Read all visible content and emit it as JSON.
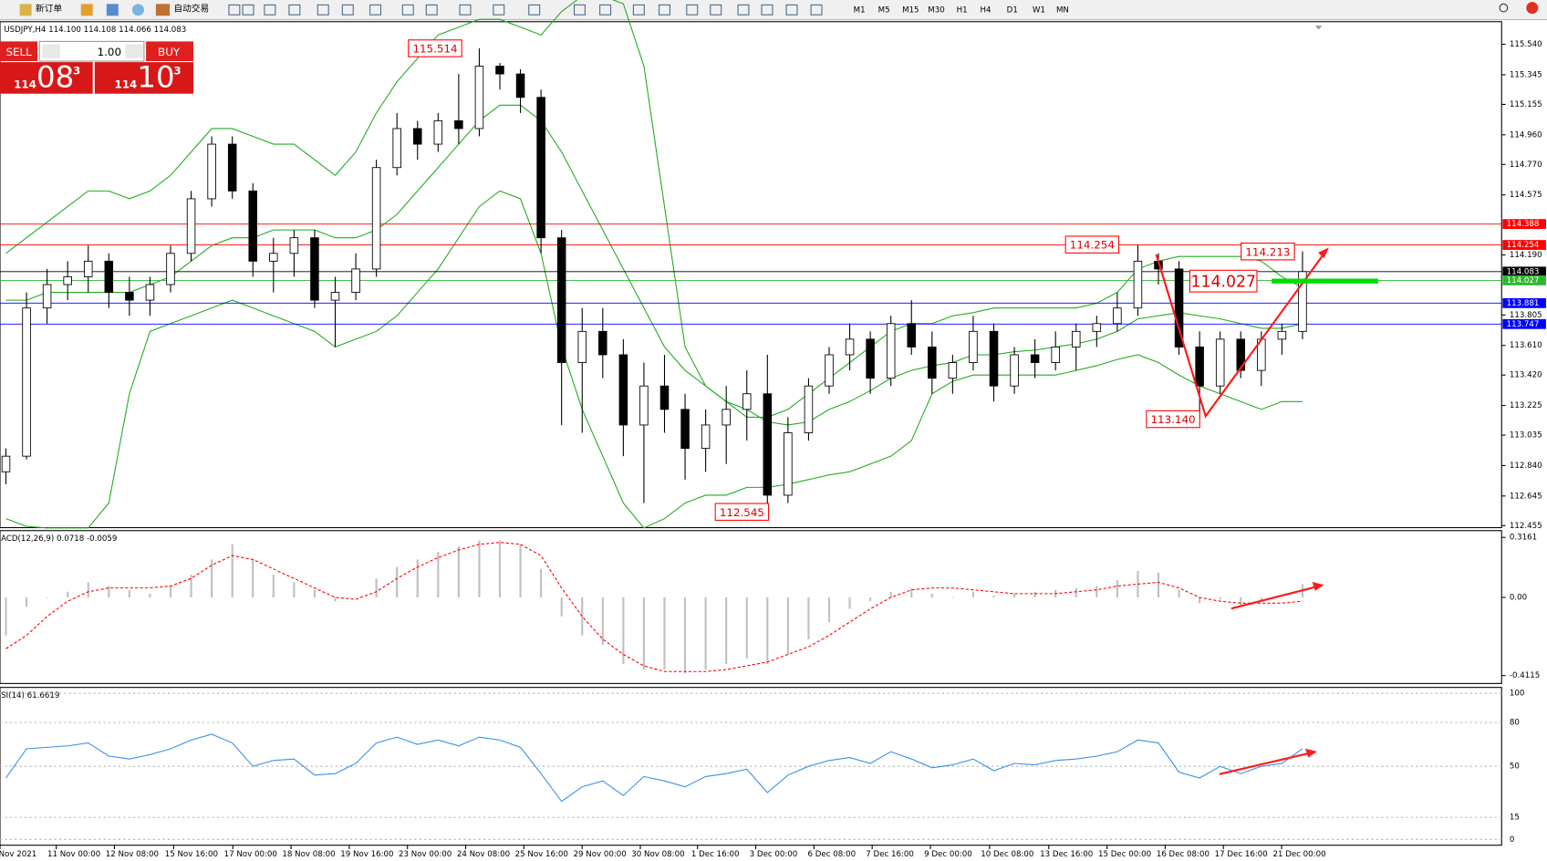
{
  "toolbar": {
    "new_order": "新订单",
    "auto_trading": "自动交易",
    "timeframes": [
      "M1",
      "M5",
      "M15",
      "M30",
      "H1",
      "H4",
      "D1",
      "W1",
      "MN"
    ]
  },
  "trade_panel": {
    "sell": "SELL",
    "buy": "BUY",
    "lot": "1.00",
    "bid": {
      "big": "114",
      "pips": "08",
      "point": "3"
    },
    "ask": {
      "big": "114",
      "pips": "10",
      "point": "3"
    }
  },
  "chart_data": {
    "type": "candlestick",
    "info": "USDJPY,H4  114.100 114.108 114.066 114.083",
    "ylim": [
      112.442,
      115.685
    ],
    "yticks": [
      {
        "value": 115.54,
        "label": "115.540"
      },
      115.345,
      115.155,
      {
        "value": 114.96,
        "label": "114.960"
      },
      {
        "value": 114.77,
        "label": "114.770"
      },
      114.575,
      {
        "value": 114.19,
        "label": "114.190"
      },
      113.805,
      {
        "value": 113.61,
        "label": "113.610"
      },
      {
        "value": 113.42,
        "label": "113.420"
      },
      113.225,
      113.035,
      {
        "value": 112.84,
        "label": "112.840"
      },
      112.645,
      112.455
    ],
    "levels": [
      {
        "value": 114.388,
        "color": "#ff0000"
      },
      {
        "value": 114.254,
        "color": "#ff0000"
      },
      {
        "value": 114.083,
        "color": "#000000"
      },
      {
        "value": 114.027,
        "color": "#2eb82e"
      },
      {
        "value": 113.881,
        "color": "#0000ff"
      },
      {
        "value": 113.747,
        "color": "#0000ff"
      }
    ],
    "annotations": [
      115.514,
      114.254,
      114.213,
      114.027,
      {
        "value": 113.14,
        "label": "113.140"
      },
      112.545
    ],
    "candles": [
      [
        112.8,
        112.95,
        112.72,
        112.9
      ],
      [
        112.9,
        113.95,
        112.88,
        113.85
      ],
      [
        113.85,
        114.1,
        113.75,
        114.0
      ],
      [
        114.0,
        114.15,
        113.9,
        114.05
      ],
      [
        114.05,
        114.25,
        113.95,
        114.15
      ],
      [
        114.15,
        114.2,
        113.85,
        113.95
      ],
      [
        113.95,
        114.05,
        113.8,
        113.9
      ],
      [
        113.9,
        114.05,
        113.8,
        114.0
      ],
      [
        114.0,
        114.25,
        113.95,
        114.2
      ],
      [
        114.2,
        114.6,
        114.15,
        114.55
      ],
      [
        114.55,
        114.95,
        114.5,
        114.9
      ],
      [
        114.9,
        114.95,
        114.55,
        114.6
      ],
      [
        114.6,
        114.65,
        114.05,
        114.15
      ],
      [
        114.15,
        114.3,
        113.95,
        114.2
      ],
      [
        114.2,
        114.35,
        114.05,
        114.3
      ],
      [
        114.3,
        114.35,
        113.85,
        113.9
      ],
      [
        113.9,
        114.05,
        113.6,
        113.95
      ],
      [
        113.95,
        114.2,
        113.9,
        114.1
      ],
      [
        114.1,
        114.8,
        114.05,
        114.75
      ],
      [
        114.75,
        115.1,
        114.7,
        115.0
      ],
      [
        115.0,
        115.05,
        114.8,
        114.9
      ],
      [
        114.9,
        115.1,
        114.85,
        115.05
      ],
      [
        115.05,
        115.35,
        114.9,
        115.0
      ],
      [
        115.0,
        115.514,
        114.95,
        115.4
      ],
      [
        115.4,
        115.42,
        115.25,
        115.35
      ],
      [
        115.35,
        115.38,
        115.1,
        115.2
      ],
      [
        115.2,
        115.25,
        114.2,
        114.3
      ],
      [
        114.3,
        114.35,
        113.1,
        113.5
      ],
      [
        113.5,
        113.85,
        113.05,
        113.7
      ],
      [
        113.7,
        113.85,
        113.4,
        113.55
      ],
      [
        113.55,
        113.65,
        112.9,
        113.1
      ],
      [
        113.1,
        113.5,
        112.6,
        113.35
      ],
      [
        113.35,
        113.55,
        113.05,
        113.2
      ],
      [
        113.2,
        113.3,
        112.75,
        112.95
      ],
      [
        112.95,
        113.2,
        112.8,
        113.1
      ],
      [
        113.1,
        113.35,
        112.85,
        113.2
      ],
      [
        113.2,
        113.45,
        113.0,
        113.3
      ],
      [
        113.3,
        113.55,
        112.545,
        112.65
      ],
      [
        112.65,
        113.15,
        112.6,
        113.05
      ],
      [
        113.05,
        113.4,
        113.0,
        113.35
      ],
      [
        113.35,
        113.6,
        113.3,
        113.55
      ],
      [
        113.55,
        113.75,
        113.45,
        113.65
      ],
      [
        113.65,
        113.7,
        113.3,
        113.4
      ],
      [
        113.4,
        113.8,
        113.35,
        113.75
      ],
      [
        113.75,
        113.9,
        113.55,
        113.6
      ],
      [
        113.6,
        113.7,
        113.3,
        113.4
      ],
      [
        113.4,
        113.55,
        113.3,
        113.5
      ],
      [
        113.5,
        113.8,
        113.45,
        113.7
      ],
      [
        113.7,
        113.75,
        113.25,
        113.35
      ],
      [
        113.35,
        113.6,
        113.3,
        113.55
      ],
      [
        113.55,
        113.65,
        113.4,
        113.5
      ],
      [
        113.5,
        113.7,
        113.45,
        113.6
      ],
      [
        113.6,
        113.75,
        113.45,
        113.7
      ],
      [
        113.7,
        113.8,
        113.6,
        113.75
      ],
      [
        113.75,
        113.95,
        113.7,
        113.85
      ],
      [
        113.85,
        114.254,
        113.8,
        114.15
      ],
      [
        114.15,
        114.2,
        114.0,
        114.1
      ],
      [
        114.1,
        114.15,
        113.55,
        113.6
      ],
      [
        113.6,
        113.7,
        113.14,
        113.35
      ],
      [
        113.35,
        113.7,
        113.3,
        113.65
      ],
      [
        113.65,
        113.7,
        113.4,
        113.45
      ],
      [
        113.45,
        113.7,
        113.35,
        113.65
      ],
      [
        113.65,
        113.75,
        113.55,
        113.7
      ],
      [
        113.7,
        114.213,
        113.65,
        114.083
      ]
    ],
    "bands": {
      "color": "#22aa22",
      "upper": [
        114.2,
        114.3,
        114.4,
        114.5,
        114.6,
        114.6,
        114.55,
        114.6,
        114.7,
        114.85,
        115.0,
        115.0,
        114.95,
        114.9,
        114.9,
        114.8,
        114.7,
        114.85,
        115.1,
        115.3,
        115.45,
        115.6,
        115.65,
        115.7,
        115.7,
        115.65,
        115.6,
        115.75,
        115.85,
        115.85,
        115.8,
        115.4,
        114.5,
        113.6,
        113.35,
        113.25,
        113.15,
        113.15,
        113.2,
        113.3,
        113.4,
        113.5,
        113.6,
        113.7,
        113.75,
        113.75,
        113.8,
        113.82,
        113.85,
        113.85,
        113.85,
        113.85,
        113.85,
        113.88,
        113.95,
        114.1,
        114.15,
        114.18,
        114.18,
        114.18,
        114.18,
        114.15,
        114.05,
        113.98
      ],
      "middle": [
        113.9,
        113.9,
        113.95,
        113.95,
        113.95,
        113.95,
        113.95,
        114.0,
        114.05,
        114.15,
        114.25,
        114.3,
        114.3,
        114.35,
        114.35,
        114.35,
        114.3,
        114.3,
        114.35,
        114.45,
        114.6,
        114.75,
        114.9,
        115.05,
        115.15,
        115.15,
        115.05,
        114.85,
        114.6,
        114.35,
        114.1,
        113.85,
        113.6,
        113.45,
        113.35,
        113.25,
        113.2,
        113.12,
        113.1,
        113.12,
        113.2,
        113.25,
        113.32,
        113.4,
        113.45,
        113.48,
        113.5,
        113.55,
        113.55,
        113.57,
        113.58,
        113.6,
        113.62,
        113.65,
        113.7,
        113.78,
        113.8,
        113.82,
        113.8,
        113.78,
        113.75,
        113.72,
        113.72,
        113.75
      ],
      "lower": [
        112.5,
        112.45,
        112.44,
        112.44,
        112.44,
        112.6,
        113.3,
        113.7,
        113.75,
        113.8,
        113.85,
        113.9,
        113.85,
        113.8,
        113.75,
        113.7,
        113.6,
        113.65,
        113.7,
        113.8,
        113.95,
        114.1,
        114.3,
        114.5,
        114.6,
        114.55,
        114.2,
        113.6,
        113.2,
        112.9,
        112.6,
        112.44,
        112.5,
        112.6,
        112.65,
        112.65,
        112.7,
        112.7,
        112.72,
        112.75,
        112.78,
        112.8,
        112.85,
        112.9,
        113.0,
        113.3,
        113.38,
        113.42,
        113.42,
        113.42,
        113.42,
        113.42,
        113.45,
        113.48,
        113.52,
        113.55,
        113.5,
        113.42,
        113.35,
        113.3,
        113.25,
        113.2,
        113.25,
        113.25
      ]
    },
    "macd": {
      "label": "ACD(12,26,9) 0.0718 -0.0059",
      "ylim": [
        -0.453,
        0.352
      ],
      "yticks": [
        0.3161,
        {
          "value": 0,
          "label": "0.00"
        },
        -0.4115
      ],
      "histogram": [
        -0.2,
        -0.05,
        0.0,
        0.03,
        0.08,
        0.06,
        0.04,
        0.02,
        0.06,
        0.12,
        0.2,
        0.28,
        0.2,
        0.12,
        0.08,
        0.04,
        -0.02,
        0.0,
        0.1,
        0.16,
        0.2,
        0.24,
        0.27,
        0.3,
        0.3,
        0.28,
        0.15,
        -0.1,
        -0.2,
        -0.25,
        -0.35,
        -0.38,
        -0.38,
        -0.4,
        -0.38,
        -0.35,
        -0.32,
        -0.35,
        -0.3,
        -0.22,
        -0.13,
        -0.06,
        -0.02,
        0.03,
        0.05,
        0.02,
        0.0,
        0.03,
        0.01,
        0.02,
        0.03,
        0.04,
        0.05,
        0.06,
        0.09,
        0.14,
        0.13,
        0.04,
        -0.03,
        -0.01,
        -0.04,
        -0.02,
        0.0,
        0.07
      ],
      "signal": [
        -0.27,
        -0.2,
        -0.1,
        -0.02,
        0.03,
        0.05,
        0.05,
        0.05,
        0.06,
        0.1,
        0.17,
        0.22,
        0.2,
        0.15,
        0.1,
        0.05,
        0.0,
        -0.01,
        0.03,
        0.1,
        0.16,
        0.21,
        0.25,
        0.28,
        0.29,
        0.28,
        0.22,
        0.05,
        -0.1,
        -0.22,
        -0.3,
        -0.36,
        -0.39,
        -0.39,
        -0.39,
        -0.38,
        -0.36,
        -0.34,
        -0.3,
        -0.26,
        -0.2,
        -0.13,
        -0.06,
        0.0,
        0.04,
        0.05,
        0.05,
        0.04,
        0.03,
        0.02,
        0.02,
        0.02,
        0.03,
        0.04,
        0.06,
        0.07,
        0.08,
        0.05,
        0.0,
        -0.02,
        -0.03,
        -0.03,
        -0.03,
        -0.02
      ]
    },
    "rsi": {
      "label": "SI(14) 61.6619",
      "ylim": [
        -4,
        104
      ],
      "yticks": [
        100,
        80,
        50,
        15,
        0
      ],
      "values": [
        42,
        62,
        63,
        64,
        66,
        57,
        55,
        58,
        62,
        68,
        72,
        66,
        50,
        54,
        55,
        44,
        45,
        52,
        66,
        70,
        65,
        68,
        64,
        70,
        68,
        63,
        45,
        26,
        36,
        40,
        30,
        43,
        40,
        36,
        43,
        45,
        48,
        32,
        44,
        50,
        54,
        56,
        52,
        60,
        55,
        49,
        51,
        55,
        47,
        52,
        51,
        54,
        55,
        57,
        60,
        68,
        66,
        46,
        42,
        50,
        45,
        50,
        52,
        62
      ]
    },
    "time_labels": [
      "Nov 2021",
      "11 Nov 00:00",
      "12 Nov 08:00",
      "15 Nov 16:00",
      "17 Nov 00:00",
      "18 Nov 08:00",
      "19 Nov 16:00",
      "23 Nov 00:00",
      "24 Nov 08:00",
      "25 Nov 16:00",
      "29 Nov 00:00",
      "30 Nov 08:00",
      "1 Dec 16:00",
      "3 Dec 00:00",
      "6 Dec 08:00",
      "7 Dec 16:00",
      "9 Dec 00:00",
      "10 Dec 08:00",
      "13 Dec 16:00",
      "15 Dec 00:00",
      "16 Dec 08:00",
      "17 Dec 16:00",
      "21 Dec 00:00"
    ]
  }
}
